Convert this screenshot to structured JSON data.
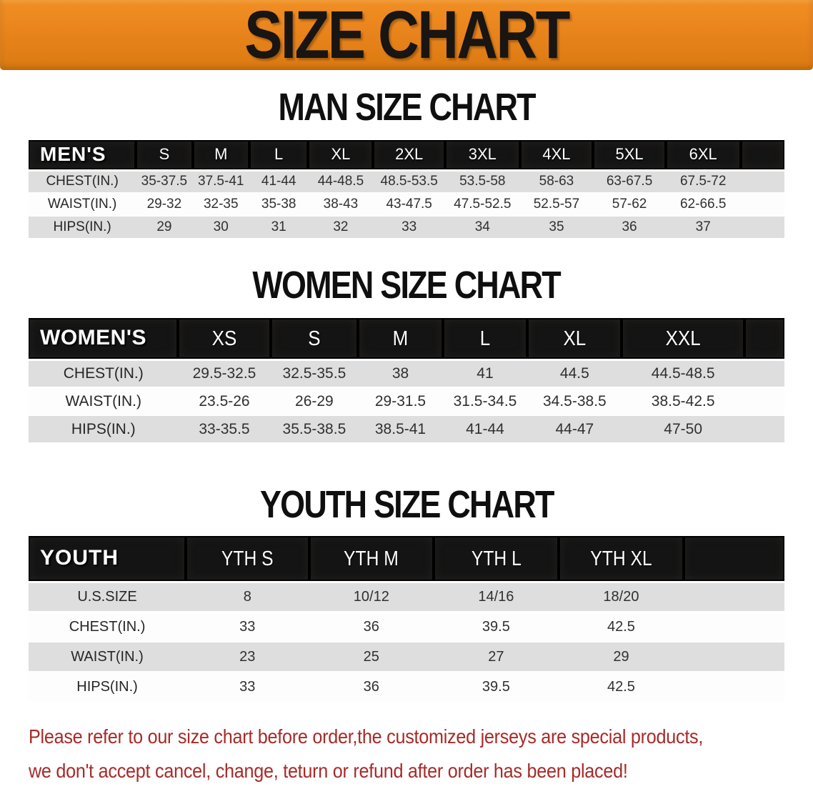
{
  "banner": {
    "title": "SIZE CHART"
  },
  "colors": {
    "banner_bg": "#E8831B",
    "header_row_bg": "#141414",
    "row_alt_bg": "#DEDEDE",
    "disclaimer_red": "#A62B29"
  },
  "chart_data": [
    {
      "type": "table",
      "title": "MAN SIZE CHART",
      "columns": [
        "MEN'S",
        "S",
        "M",
        "L",
        "XL",
        "2XL",
        "3XL",
        "4XL",
        "5XL",
        "6XL"
      ],
      "rows": [
        {
          "label": "CHEST(IN.)",
          "values": [
            "35-37.5",
            "37.5-41",
            "41-44",
            "44-48.5",
            "48.5-53.5",
            "53.5-58",
            "58-63",
            "63-67.5",
            "67.5-72"
          ]
        },
        {
          "label": "WAIST(IN.)",
          "values": [
            "29-32",
            "32-35",
            "35-38",
            "38-43",
            "43-47.5",
            "47.5-52.5",
            "52.5-57",
            "57-62",
            "62-66.5"
          ]
        },
        {
          "label": "HIPS(IN.)",
          "values": [
            "29",
            "30",
            "31",
            "32",
            "33",
            "34",
            "35",
            "36",
            "37"
          ]
        }
      ]
    },
    {
      "type": "table",
      "title": "WOMEN SIZE CHART",
      "columns": [
        "WOMEN'S",
        "XS",
        "S",
        "M",
        "L",
        "XL",
        "XXL"
      ],
      "rows": [
        {
          "label": "CHEST(IN.)",
          "values": [
            "29.5-32.5",
            "32.5-35.5",
            "38",
            "41",
            "44.5",
            "44.5-48.5"
          ]
        },
        {
          "label": "WAIST(IN.)",
          "values": [
            "23.5-26",
            "26-29",
            "29-31.5",
            "31.5-34.5",
            "34.5-38.5",
            "38.5-42.5"
          ]
        },
        {
          "label": "HIPS(IN.)",
          "values": [
            "33-35.5",
            "35.5-38.5",
            "38.5-41",
            "41-44",
            "44-47",
            "47-50"
          ]
        }
      ]
    },
    {
      "type": "table",
      "title": "YOUTH SIZE CHART",
      "columns": [
        "YOUTH",
        "YTH S",
        "YTH M",
        "YTH L",
        "YTH XL"
      ],
      "rows": [
        {
          "label": "U.S.SIZE",
          "values": [
            "8",
            "10/12",
            "14/16",
            "18/20"
          ]
        },
        {
          "label": "CHEST(IN.)",
          "values": [
            "33",
            "36",
            "39.5",
            "42.5"
          ]
        },
        {
          "label": "WAIST(IN.)",
          "values": [
            "23",
            "25",
            "27",
            "29"
          ]
        },
        {
          "label": "HIPS(IN.)",
          "values": [
            "33",
            "36",
            "39.5",
            "42.5"
          ]
        }
      ]
    }
  ],
  "disclaimer": {
    "line1": "Please refer to our size chart before order,the customized jerseys are special products,",
    "line2": "we don't accept cancel, change, teturn or refund after order has been placed!"
  }
}
